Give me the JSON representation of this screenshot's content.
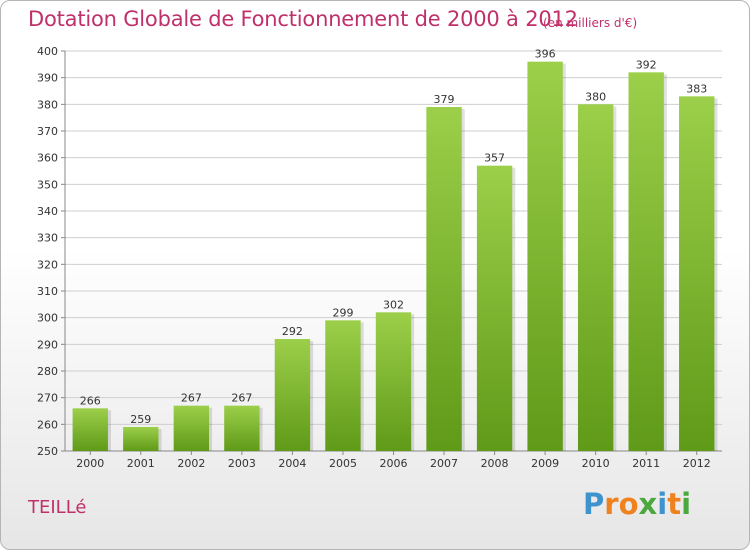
{
  "title": "Dotation Globale de Fonctionnement de 2000 à 2012",
  "subtitle": "(en milliers d'€)",
  "commune": "TEILLé",
  "logo": {
    "text": "Proxiti",
    "letters": [
      {
        "ch": "P",
        "color": "#3e93cf"
      },
      {
        "ch": "r",
        "color": "#f0821e"
      },
      {
        "ch": "o",
        "color": "#f0821e"
      },
      {
        "ch": "x",
        "color": "#4aa83c"
      },
      {
        "ch": "i",
        "color": "#3e93cf"
      },
      {
        "ch": "t",
        "color": "#f0821e"
      },
      {
        "ch": "i",
        "color": "#4aa83c"
      }
    ]
  },
  "colors": {
    "bar_top": "#9ccf4a",
    "bar_bottom": "#5f9a18",
    "title": "#c0306a",
    "grid": "#cfcfcf"
  },
  "chart_data": {
    "type": "bar",
    "categories": [
      "2000",
      "2001",
      "2002",
      "2003",
      "2004",
      "2005",
      "2006",
      "2007",
      "2008",
      "2009",
      "2010",
      "2011",
      "2012"
    ],
    "values": [
      266,
      259,
      267,
      267,
      292,
      299,
      302,
      379,
      357,
      396,
      380,
      392,
      383
    ],
    "ylim": [
      250,
      400
    ],
    "yticks": [
      250,
      260,
      270,
      280,
      290,
      300,
      310,
      320,
      330,
      340,
      350,
      360,
      370,
      380,
      390,
      400
    ],
    "grid": true,
    "xlabel": "",
    "ylabel": ""
  }
}
